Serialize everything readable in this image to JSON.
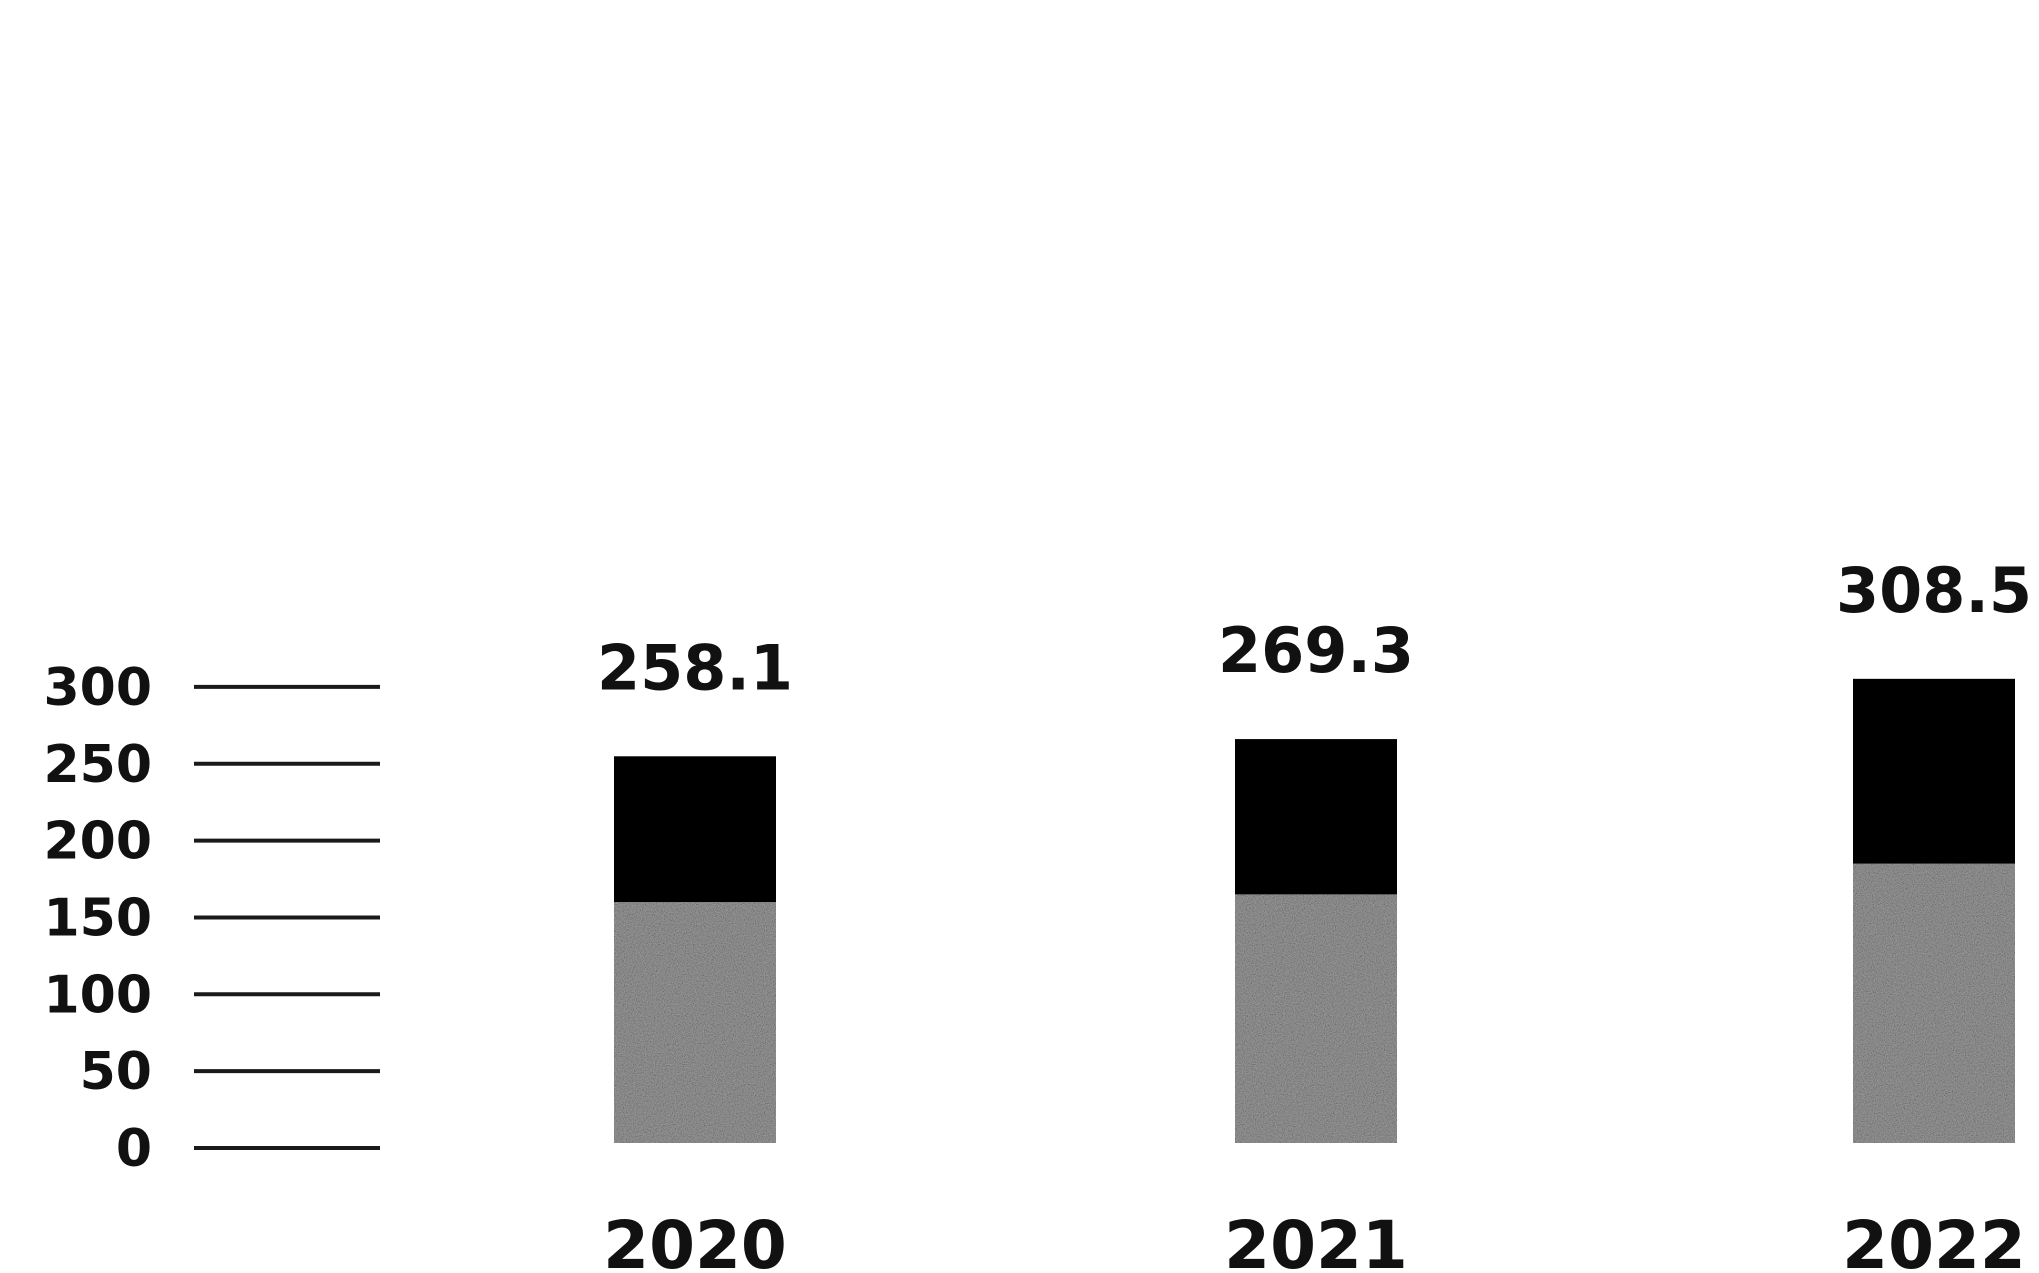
{
  "chart_data": {
    "type": "bar",
    "stacked": true,
    "categories": [
      "2020",
      "2021",
      "2022"
    ],
    "series": [
      {
        "values": [
          160,
          165,
          185
        ],
        "color": "#9a9a9a"
      },
      {
        "values": [
          98.1,
          104.3,
          123.5
        ],
        "color": "#000000"
      }
    ],
    "totals": [
      "258.1",
      "269.3",
      "308.5"
    ],
    "yticks": [
      "0",
      "50",
      "100",
      "150",
      "200",
      "250",
      "300"
    ],
    "ylim": [
      0,
      308.5
    ],
    "grid": false,
    "legend": "none"
  }
}
